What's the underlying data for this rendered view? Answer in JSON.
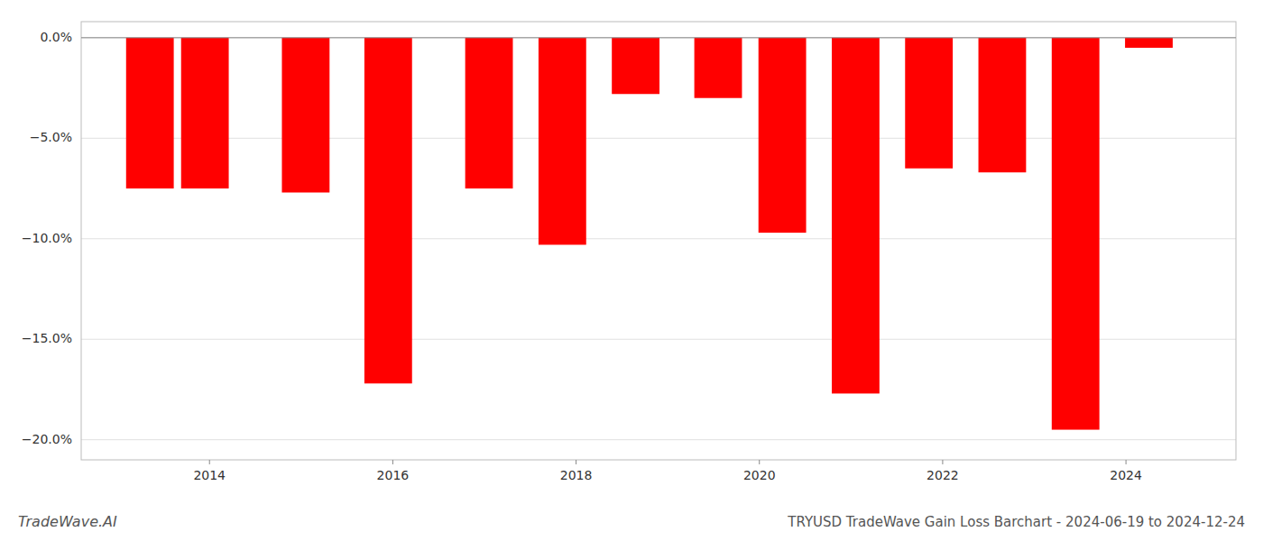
{
  "chart_data": {
    "type": "bar",
    "title": "TRYUSD TradeWave Gain Loss Barchart - 2024-06-19 to 2024-12-24",
    "annotations": [
      {
        "text": "TradeWave.AI"
      }
    ],
    "x": [
      2013.35,
      2013.95,
      2015.05,
      2015.95,
      2017.05,
      2017.85,
      2018.65,
      2019.55,
      2020.25,
      2021.05,
      2021.85,
      2022.65,
      2023.45,
      2024.25
    ],
    "values": [
      -7.5,
      -7.5,
      -7.7,
      -17.2,
      -7.5,
      -10.3,
      -2.8,
      -3.0,
      -9.7,
      -17.7,
      -6.5,
      -6.7,
      -19.5,
      -0.5
    ],
    "color": "#ff0000",
    "xlim": [
      2012.6,
      2025.2
    ],
    "xticks": [
      2014,
      2016,
      2018,
      2020,
      2022,
      2024
    ],
    "ylim": [
      -21.0,
      0.8
    ],
    "yticks": [
      {
        "value": 0.0,
        "label": "0.0%"
      },
      {
        "value": -5.0,
        "label": "−5.0%"
      },
      {
        "value": -10.0,
        "label": "−10.0%"
      },
      {
        "value": -15.0,
        "label": "−15.0%"
      },
      {
        "value": -20.0,
        "label": "−20.0%"
      }
    ],
    "grid": true
  }
}
